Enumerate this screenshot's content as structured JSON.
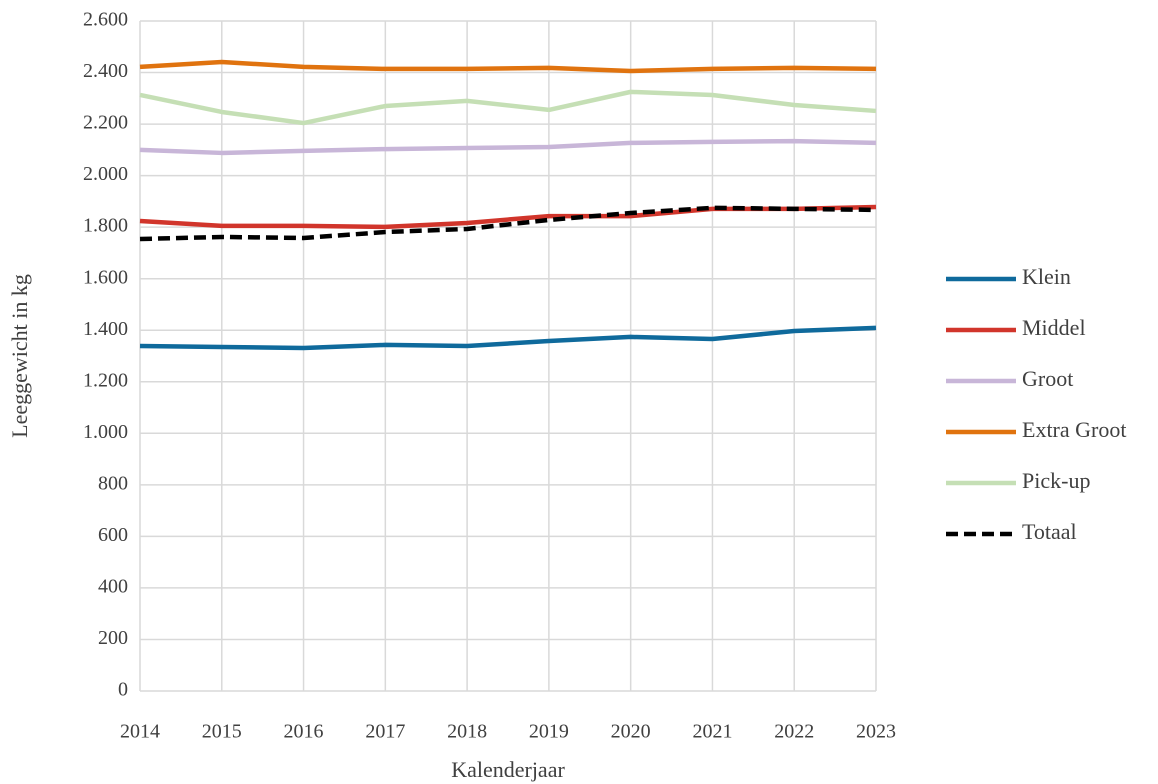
{
  "chart_data": {
    "type": "line",
    "x_label": "Kalenderjaar",
    "y_label": "Leeggewicht in kg",
    "categories": [
      "2014",
      "2015",
      "2016",
      "2017",
      "2018",
      "2019",
      "2020",
      "2021",
      "2022",
      "2023"
    ],
    "ylim": [
      0,
      2600
    ],
    "yticks": [
      0,
      200,
      400,
      600,
      800,
      {
        "value": 1000,
        "label": "1.000"
      },
      {
        "value": 1200,
        "label": "1.200"
      },
      {
        "value": 1400,
        "label": "1.400"
      },
      {
        "value": 1600,
        "label": "1.600"
      },
      {
        "value": 1800,
        "label": "1.800"
      },
      {
        "value": 2000,
        "label": "2.000"
      },
      {
        "value": 2200,
        "label": "2.200"
      },
      {
        "value": 2400,
        "label": "2.400"
      },
      {
        "value": 2600,
        "label": "2.600"
      }
    ],
    "grid": true,
    "legend": "right",
    "series": [
      {
        "name": "Klein",
        "color": "#0f6a9c",
        "values": [
          1339,
          1335,
          1331,
          1343,
          1339,
          1358,
          1374,
          1366,
          1397,
          1409
        ]
      },
      {
        "name": "Middel",
        "color": "#d1352b",
        "values": [
          1824,
          1805,
          1805,
          1801,
          1816,
          1843,
          1843,
          1871,
          1871,
          1878
        ]
      },
      {
        "name": "Groot",
        "color": "#c8b6d8",
        "values": [
          2100,
          2088,
          2096,
          2103,
          2107,
          2111,
          2127,
          2131,
          2134,
          2127
        ]
      },
      {
        "name": "Extra Groot",
        "color": "#e0730f",
        "values": [
          2422,
          2441,
          2422,
          2414,
          2414,
          2418,
          2406,
          2414,
          2418,
          2414
        ]
      },
      {
        "name": "Pick-up",
        "color": "#c5dfb5",
        "values": [
          2313,
          2247,
          2204,
          2270,
          2290,
          2255,
          2325,
          2313,
          2274,
          2251
        ]
      },
      {
        "name": "Totaal",
        "color": "#000000",
        "dashed": true,
        "values": [
          1754,
          1762,
          1758,
          1781,
          1793,
          1828,
          1855,
          1875,
          1871,
          1867
        ]
      }
    ]
  }
}
